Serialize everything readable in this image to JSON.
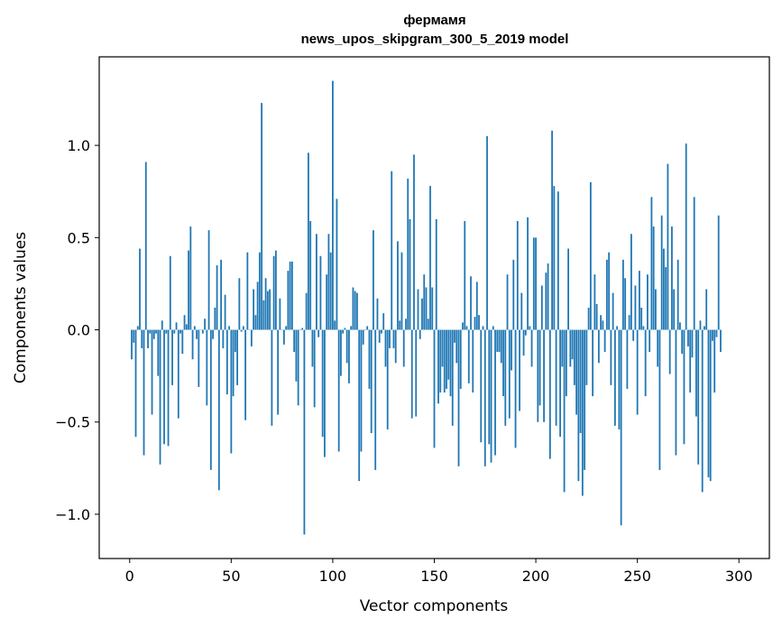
{
  "chart_data": {
    "type": "bar",
    "title": [
      "фермамя",
      "news_upos_skipgram_300_5_2019 model"
    ],
    "xlabel": "Vector components",
    "ylabel": "Components values",
    "xlim": [
      -15,
      315
    ],
    "ylim": [
      -1.24,
      1.48
    ],
    "xticks": [
      0,
      50,
      100,
      150,
      200,
      250,
      300
    ],
    "xtick_labels": [
      "0",
      "50",
      "100",
      "150",
      "200",
      "250",
      "300"
    ],
    "yticks": [
      -1.0,
      -0.5,
      0.0,
      0.5,
      1.0
    ],
    "ytick_labels": [
      "−1.0",
      "−0.5",
      "0.0",
      "0.5",
      "1.0"
    ],
    "grid": false,
    "bar_color": "#1f77b4",
    "x_start": 1,
    "values": [
      -0.16,
      -0.07,
      -0.58,
      0.02,
      0.44,
      -0.1,
      -0.68,
      0.91,
      -0.1,
      -0.02,
      -0.46,
      -0.05,
      -0.02,
      -0.25,
      -0.73,
      0.05,
      -0.62,
      -0.02,
      -0.63,
      0.4,
      -0.3,
      -0.02,
      0.04,
      -0.48,
      -0.02,
      -0.13,
      0.08,
      0.03,
      0.43,
      0.56,
      -0.16,
      0.02,
      -0.05,
      -0.31,
      0.0,
      -0.02,
      0.06,
      -0.41,
      0.54,
      -0.76,
      -0.05,
      0.12,
      0.35,
      -0.87,
      0.38,
      -0.1,
      0.19,
      -0.35,
      0.02,
      -0.67,
      -0.36,
      -0.12,
      -0.3,
      0.28,
      -0.01,
      0.02,
      -0.49,
      0.42,
      0.0,
      -0.09,
      0.22,
      0.08,
      0.26,
      0.42,
      1.23,
      0.16,
      0.28,
      0.21,
      0.22,
      -0.52,
      0.4,
      0.43,
      -0.46,
      0.17,
      0.0,
      -0.08,
      0.02,
      0.32,
      0.37,
      0.37,
      -0.12,
      -0.28,
      -0.41,
      0.0,
      0.01,
      -1.11,
      0.2,
      0.96,
      0.59,
      -0.2,
      -0.42,
      0.52,
      -0.04,
      0.4,
      -0.58,
      -0.69,
      0.3,
      0.52,
      0.42,
      1.35,
      0.05,
      0.71,
      -0.66,
      -0.25,
      -0.02,
      0.01,
      -0.18,
      -0.29,
      0.02,
      0.23,
      0.21,
      0.2,
      -0.82,
      -0.66,
      -0.08,
      0.0,
      0.02,
      -0.32,
      -0.56,
      0.54,
      -0.76,
      0.17,
      -0.07,
      -0.02,
      0.09,
      -0.2,
      -0.54,
      -0.1,
      0.86,
      -0.1,
      -0.18,
      0.48,
      0.05,
      0.42,
      -0.2,
      0.06,
      0.82,
      0.6,
      -0.48,
      0.95,
      -0.47,
      0.22,
      -0.05,
      0.17,
      0.3,
      0.23,
      0.06,
      0.78,
      0.23,
      -0.64,
      0.6,
      -0.4,
      -0.34,
      -0.2,
      -0.34,
      -0.32,
      -0.27,
      -0.36,
      -0.52,
      -0.07,
      -0.18,
      -0.74,
      -0.32,
      0.04,
      0.59,
      0.02,
      -0.29,
      0.29,
      -0.34,
      0.07,
      0.26,
      0.08,
      -0.61,
      0.02,
      -0.74,
      1.05,
      -0.62,
      -0.72,
      0.02,
      -0.68,
      -0.12,
      -0.12,
      -0.18,
      -0.36,
      -0.52,
      0.3,
      -0.48,
      -0.22,
      0.38,
      -0.64,
      0.59,
      -0.44,
      0.2,
      -0.14,
      -0.03,
      0.61,
      0.02,
      -0.2,
      0.5,
      0.5,
      -0.5,
      -0.41,
      0.24,
      -0.5,
      0.31,
      0.36,
      -0.7,
      1.08,
      0.78,
      -0.52,
      0.75,
      -0.58,
      -0.2,
      -0.88,
      -0.36,
      0.44,
      -0.2,
      -0.16,
      -0.3,
      -0.46,
      -0.82,
      -0.56,
      -0.9,
      -0.76,
      -0.3,
      0.12,
      0.8,
      -0.36,
      0.3,
      0.14,
      -0.18,
      0.08,
      0.05,
      -0.12,
      0.38,
      0.42,
      -0.3,
      0.2,
      -0.52,
      0.02,
      -0.54,
      -1.06,
      0.38,
      0.28,
      -0.32,
      0.08,
      0.52,
      -0.06,
      0.24,
      -0.46,
      0.32,
      0.12,
      0.02,
      -0.36,
      0.3,
      -0.12,
      0.72,
      0.56,
      0.22,
      -0.2,
      -0.76,
      0.62,
      0.44,
      0.34,
      0.9,
      -0.24,
      0.56,
      0.22,
      -0.68,
      0.38,
      0.04,
      -0.13,
      -0.62,
      1.01,
      -0.09,
      -0.34,
      -0.15,
      0.72,
      -0.47,
      -0.73,
      0.05,
      -0.88,
      0.02,
      0.22,
      -0.8,
      -0.82,
      -0.06,
      -0.34,
      -0.04,
      0.62,
      -0.12
    ]
  }
}
